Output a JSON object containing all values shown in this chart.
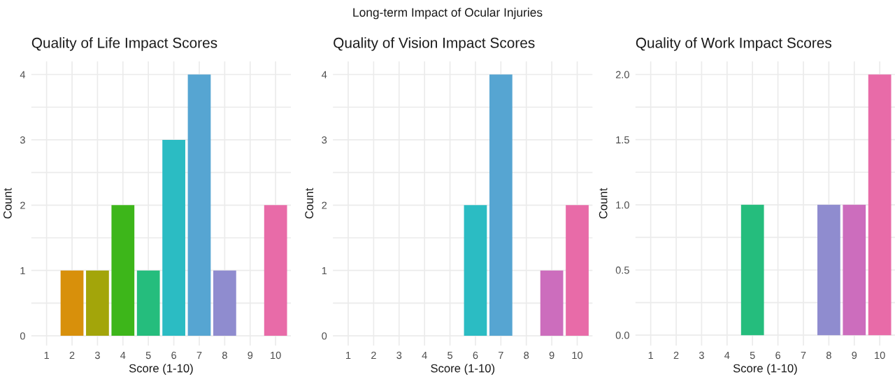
{
  "chart_data": [
    {
      "type": "bar",
      "title": "Quality of Life Impact Scores",
      "xlabel": "Score (1-10)",
      "ylabel": "Count",
      "annotations": [
        "Long-term Impact of Ocular Injuries"
      ],
      "categories": [
        "1",
        "2",
        "3",
        "4",
        "5",
        "6",
        "7",
        "8",
        "9",
        "10"
      ],
      "values": [
        null,
        1,
        1,
        2,
        1,
        3,
        4,
        1,
        null,
        2
      ],
      "colors": [
        null,
        "#d8900b",
        "#a3a50a",
        "#3db61a",
        "#25bd7d",
        "#2bbcc3",
        "#56a5d2",
        "#8f8ccf",
        null,
        "#e86ba8"
      ],
      "ylim": [
        -0.15,
        4.2
      ],
      "yticks": [
        0,
        {
          "value": 0.5,
          "label": null
        },
        1,
        {
          "value": 1.5,
          "label": null
        },
        2,
        {
          "value": 2.5,
          "label": null
        },
        3,
        {
          "value": 3.5,
          "label": null
        },
        4
      ],
      "grid": true
    },
    {
      "type": "bar",
      "title": "Quality of Vision Impact Scores",
      "xlabel": "Score (1-10)",
      "ylabel": "Count",
      "categories": [
        "1",
        "2",
        "3",
        "4",
        "5",
        "6",
        "7",
        "8",
        "9",
        "10"
      ],
      "values": [
        null,
        null,
        null,
        null,
        null,
        2,
        4,
        null,
        1,
        2
      ],
      "colors": [
        null,
        null,
        null,
        null,
        null,
        "#2bbcc3",
        "#56a5d2",
        null,
        "#cc6dbd",
        "#e86ba8"
      ],
      "ylim": [
        -0.15,
        4.2
      ],
      "yticks": [
        0,
        {
          "value": 0.5,
          "label": null
        },
        1,
        {
          "value": 1.5,
          "label": null
        },
        2,
        {
          "value": 2.5,
          "label": null
        },
        3,
        {
          "value": 3.5,
          "label": null
        },
        4
      ],
      "grid": true
    },
    {
      "type": "bar",
      "title": "Quality of Work Impact Scores",
      "xlabel": "Score (1-10)",
      "ylabel": "Count",
      "categories": [
        "1",
        "2",
        "3",
        "4",
        "5",
        "6",
        "7",
        "8",
        "9",
        "10"
      ],
      "values": [
        null,
        null,
        null,
        null,
        1,
        null,
        null,
        1,
        1,
        2
      ],
      "colors": [
        null,
        null,
        null,
        null,
        "#25bd7d",
        null,
        null,
        "#8f8ccf",
        "#cc6dbd",
        "#e86ba8"
      ],
      "ylim": [
        -0.08,
        2.1
      ],
      "yticks": [
        {
          "value": 0,
          "label": "0.0"
        },
        {
          "value": 0.25,
          "label": null
        },
        {
          "value": 0.5,
          "label": "0.5"
        },
        {
          "value": 0.75,
          "label": null
        },
        {
          "value": 1,
          "label": "1.0"
        },
        {
          "value": 1.25,
          "label": null
        },
        {
          "value": 1.5,
          "label": "1.5"
        },
        {
          "value": 1.75,
          "label": null
        },
        {
          "value": 2,
          "label": "2.0"
        }
      ],
      "grid": true
    }
  ]
}
